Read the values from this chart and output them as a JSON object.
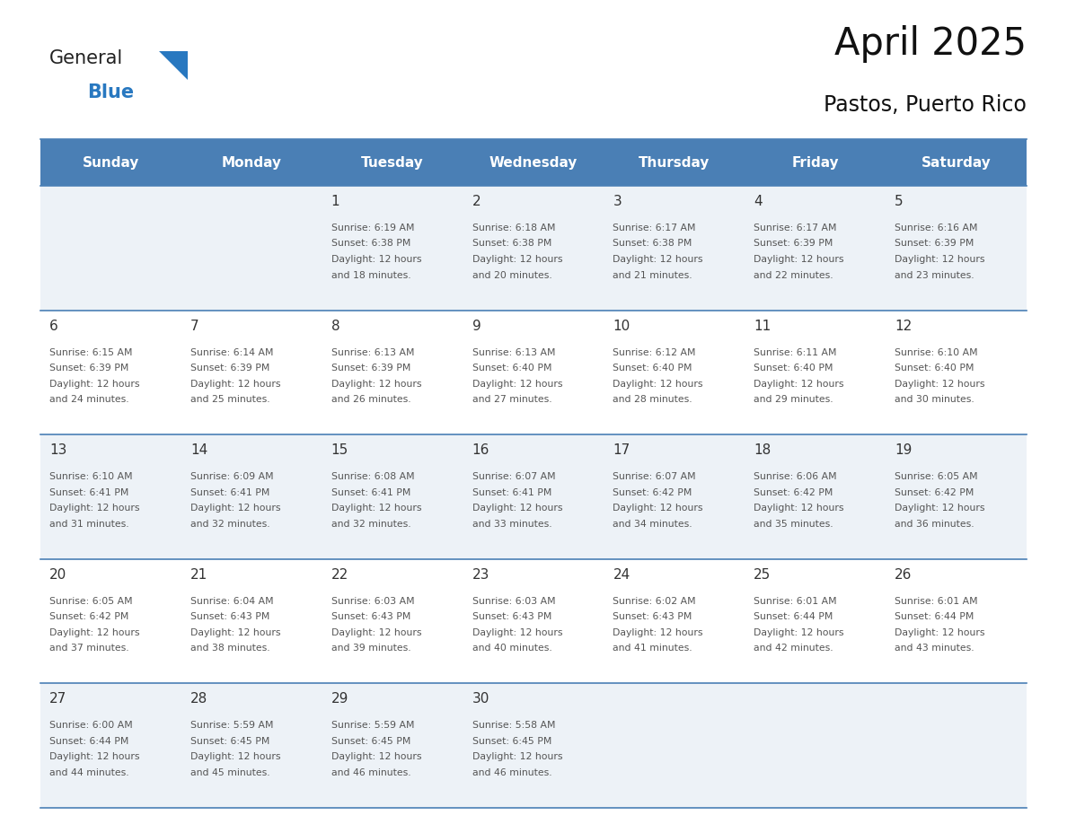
{
  "title": "April 2025",
  "subtitle": "Pastos, Puerto Rico",
  "header_bg_color": "#4a7fb5",
  "header_text_color": "#ffffff",
  "day_names": [
    "Sunday",
    "Monday",
    "Tuesday",
    "Wednesday",
    "Thursday",
    "Friday",
    "Saturday"
  ],
  "cell_bg_even": "#edf2f7",
  "cell_bg_odd": "#ffffff",
  "cell_border_color": "#4a7fb5",
  "text_color": "#333333",
  "small_text_color": "#555555",
  "logo_general_color": "#222222",
  "logo_blue_color": "#2878c0",
  "logo_triangle_color": "#2878c0",
  "title_color": "#111111",
  "days": [
    {
      "day": 1,
      "col": 2,
      "row": 0,
      "sunrise": "6:19 AM",
      "sunset": "6:38 PM",
      "daylight": "12 hours",
      "daylight2": "and 18 minutes."
    },
    {
      "day": 2,
      "col": 3,
      "row": 0,
      "sunrise": "6:18 AM",
      "sunset": "6:38 PM",
      "daylight": "12 hours",
      "daylight2": "and 20 minutes."
    },
    {
      "day": 3,
      "col": 4,
      "row": 0,
      "sunrise": "6:17 AM",
      "sunset": "6:38 PM",
      "daylight": "12 hours",
      "daylight2": "and 21 minutes."
    },
    {
      "day": 4,
      "col": 5,
      "row": 0,
      "sunrise": "6:17 AM",
      "sunset": "6:39 PM",
      "daylight": "12 hours",
      "daylight2": "and 22 minutes."
    },
    {
      "day": 5,
      "col": 6,
      "row": 0,
      "sunrise": "6:16 AM",
      "sunset": "6:39 PM",
      "daylight": "12 hours",
      "daylight2": "and 23 minutes."
    },
    {
      "day": 6,
      "col": 0,
      "row": 1,
      "sunrise": "6:15 AM",
      "sunset": "6:39 PM",
      "daylight": "12 hours",
      "daylight2": "and 24 minutes."
    },
    {
      "day": 7,
      "col": 1,
      "row": 1,
      "sunrise": "6:14 AM",
      "sunset": "6:39 PM",
      "daylight": "12 hours",
      "daylight2": "and 25 minutes."
    },
    {
      "day": 8,
      "col": 2,
      "row": 1,
      "sunrise": "6:13 AM",
      "sunset": "6:39 PM",
      "daylight": "12 hours",
      "daylight2": "and 26 minutes."
    },
    {
      "day": 9,
      "col": 3,
      "row": 1,
      "sunrise": "6:13 AM",
      "sunset": "6:40 PM",
      "daylight": "12 hours",
      "daylight2": "and 27 minutes."
    },
    {
      "day": 10,
      "col": 4,
      "row": 1,
      "sunrise": "6:12 AM",
      "sunset": "6:40 PM",
      "daylight": "12 hours",
      "daylight2": "and 28 minutes."
    },
    {
      "day": 11,
      "col": 5,
      "row": 1,
      "sunrise": "6:11 AM",
      "sunset": "6:40 PM",
      "daylight": "12 hours",
      "daylight2": "and 29 minutes."
    },
    {
      "day": 12,
      "col": 6,
      "row": 1,
      "sunrise": "6:10 AM",
      "sunset": "6:40 PM",
      "daylight": "12 hours",
      "daylight2": "and 30 minutes."
    },
    {
      "day": 13,
      "col": 0,
      "row": 2,
      "sunrise": "6:10 AM",
      "sunset": "6:41 PM",
      "daylight": "12 hours",
      "daylight2": "and 31 minutes."
    },
    {
      "day": 14,
      "col": 1,
      "row": 2,
      "sunrise": "6:09 AM",
      "sunset": "6:41 PM",
      "daylight": "12 hours",
      "daylight2": "and 32 minutes."
    },
    {
      "day": 15,
      "col": 2,
      "row": 2,
      "sunrise": "6:08 AM",
      "sunset": "6:41 PM",
      "daylight": "12 hours",
      "daylight2": "and 32 minutes."
    },
    {
      "day": 16,
      "col": 3,
      "row": 2,
      "sunrise": "6:07 AM",
      "sunset": "6:41 PM",
      "daylight": "12 hours",
      "daylight2": "and 33 minutes."
    },
    {
      "day": 17,
      "col": 4,
      "row": 2,
      "sunrise": "6:07 AM",
      "sunset": "6:42 PM",
      "daylight": "12 hours",
      "daylight2": "and 34 minutes."
    },
    {
      "day": 18,
      "col": 5,
      "row": 2,
      "sunrise": "6:06 AM",
      "sunset": "6:42 PM",
      "daylight": "12 hours",
      "daylight2": "and 35 minutes."
    },
    {
      "day": 19,
      "col": 6,
      "row": 2,
      "sunrise": "6:05 AM",
      "sunset": "6:42 PM",
      "daylight": "12 hours",
      "daylight2": "and 36 minutes."
    },
    {
      "day": 20,
      "col": 0,
      "row": 3,
      "sunrise": "6:05 AM",
      "sunset": "6:42 PM",
      "daylight": "12 hours",
      "daylight2": "and 37 minutes."
    },
    {
      "day": 21,
      "col": 1,
      "row": 3,
      "sunrise": "6:04 AM",
      "sunset": "6:43 PM",
      "daylight": "12 hours",
      "daylight2": "and 38 minutes."
    },
    {
      "day": 22,
      "col": 2,
      "row": 3,
      "sunrise": "6:03 AM",
      "sunset": "6:43 PM",
      "daylight": "12 hours",
      "daylight2": "and 39 minutes."
    },
    {
      "day": 23,
      "col": 3,
      "row": 3,
      "sunrise": "6:03 AM",
      "sunset": "6:43 PM",
      "daylight": "12 hours",
      "daylight2": "and 40 minutes."
    },
    {
      "day": 24,
      "col": 4,
      "row": 3,
      "sunrise": "6:02 AM",
      "sunset": "6:43 PM",
      "daylight": "12 hours",
      "daylight2": "and 41 minutes."
    },
    {
      "day": 25,
      "col": 5,
      "row": 3,
      "sunrise": "6:01 AM",
      "sunset": "6:44 PM",
      "daylight": "12 hours",
      "daylight2": "and 42 minutes."
    },
    {
      "day": 26,
      "col": 6,
      "row": 3,
      "sunrise": "6:01 AM",
      "sunset": "6:44 PM",
      "daylight": "12 hours",
      "daylight2": "and 43 minutes."
    },
    {
      "day": 27,
      "col": 0,
      "row": 4,
      "sunrise": "6:00 AM",
      "sunset": "6:44 PM",
      "daylight": "12 hours",
      "daylight2": "and 44 minutes."
    },
    {
      "day": 28,
      "col": 1,
      "row": 4,
      "sunrise": "5:59 AM",
      "sunset": "6:45 PM",
      "daylight": "12 hours",
      "daylight2": "and 45 minutes."
    },
    {
      "day": 29,
      "col": 2,
      "row": 4,
      "sunrise": "5:59 AM",
      "sunset": "6:45 PM",
      "daylight": "12 hours",
      "daylight2": "and 46 minutes."
    },
    {
      "day": 30,
      "col": 3,
      "row": 4,
      "sunrise": "5:58 AM",
      "sunset": "6:45 PM",
      "daylight": "12 hours",
      "daylight2": "and 46 minutes."
    }
  ]
}
